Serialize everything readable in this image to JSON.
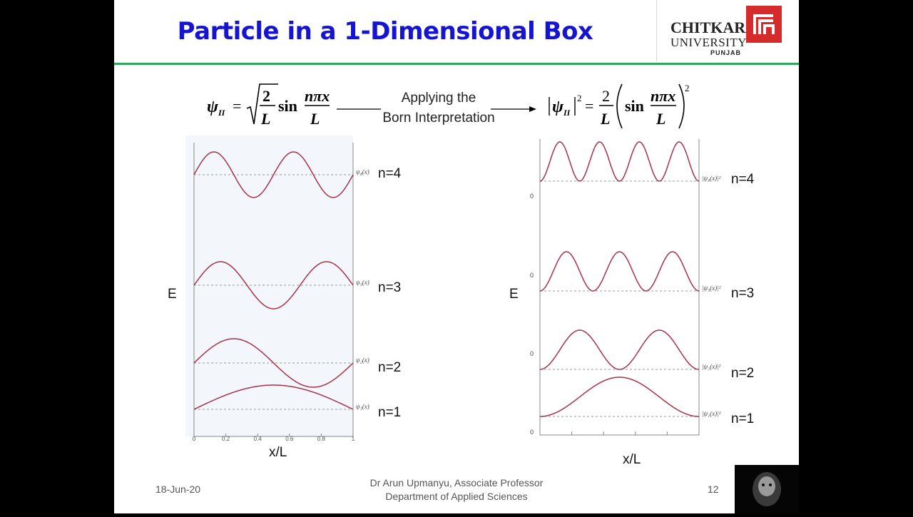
{
  "slide": {
    "title": "Particle in a 1-Dimensional Box",
    "logo": {
      "brand": "CHITKARA",
      "university": "UNIVERSITY",
      "campus": "PUNJAB"
    },
    "applying_line1": "Applying the",
    "applying_line2": "Born Interpretation",
    "footer": {
      "date": "18-Jun-20",
      "author_line1": "Dr Arun Upmanyu, Associate Professor",
      "author_line2": "Department of Applied Sciences",
      "page_number": "12"
    },
    "colors": {
      "title": "#1414d2",
      "rule": "#2eaa5c",
      "curve": "#a8324a",
      "logo": "#d62b2b"
    }
  },
  "left_diagram": {
    "energy_label": "E",
    "x_label": "x/L",
    "tick_labels": [
      "0",
      "0.2",
      "0.4",
      "0.6",
      "0.8",
      "1"
    ],
    "levels": [
      {
        "n_label": "n=4",
        "fn_label": "ψ₄(x)",
        "n": 4
      },
      {
        "n_label": "n=3",
        "fn_label": "ψ₃(x)",
        "n": 3
      },
      {
        "n_label": "n=2",
        "fn_label": "ψ₂(x)",
        "n": 2
      },
      {
        "n_label": "n=1",
        "fn_label": "ψ₁(x)",
        "n": 1
      }
    ]
  },
  "right_diagram": {
    "energy_label": "E",
    "x_label": "x/L",
    "zero_label": "0",
    "levels": [
      {
        "n_label": "n=4",
        "fn_label": "|ψ₄(x)|²",
        "n": 4
      },
      {
        "n_label": "n=3",
        "fn_label": "|ψ₃(x)|²",
        "n": 3
      },
      {
        "n_label": "n=2",
        "fn_label": "|ψ₂(x)|²",
        "n": 2
      },
      {
        "n_label": "n=1",
        "fn_label": "|ψ₁(x)|²",
        "n": 1
      }
    ]
  }
}
